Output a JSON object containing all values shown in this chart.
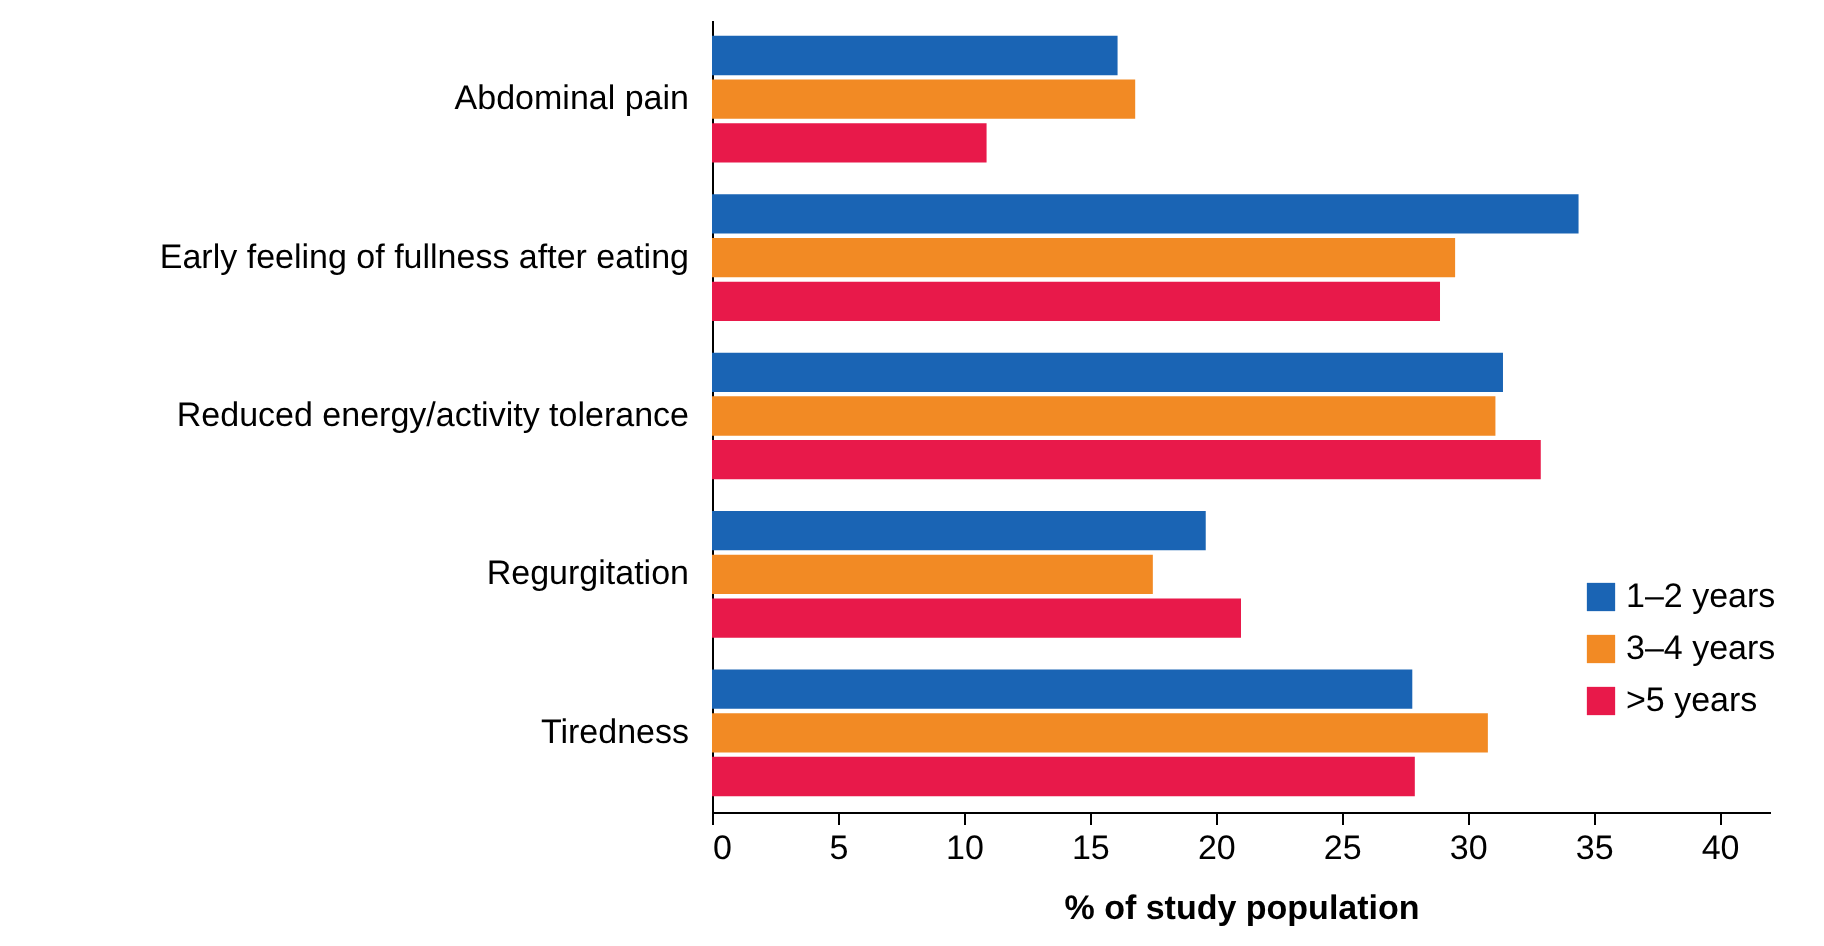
{
  "chart_data": {
    "type": "bar",
    "orientation": "horizontal",
    "xlabel": "% of study population",
    "categories": [
      "Abdominal pain",
      "Early feeling of fullness after eating",
      "Reduced energy/activity tolerance",
      "Regurgitation",
      "Tiredness"
    ],
    "series": [
      {
        "name": "1–2 years",
        "color": "#1a64b4",
        "values": [
          16.1,
          34.4,
          31.4,
          19.6,
          27.8
        ]
      },
      {
        "name": "3–4 years",
        "color": "#f28a24",
        "values": [
          16.8,
          29.5,
          31.1,
          17.5,
          30.8
        ]
      },
      {
        "name": ">5 years",
        "color": "#e8194a",
        "values": [
          10.9,
          28.9,
          32.9,
          21.0,
          27.9
        ]
      }
    ],
    "xlim": [
      0,
      42
    ],
    "xticks": [
      0,
      5,
      10,
      15,
      20,
      25,
      30,
      35,
      40
    ],
    "grid": false,
    "legend": "bottom right"
  }
}
